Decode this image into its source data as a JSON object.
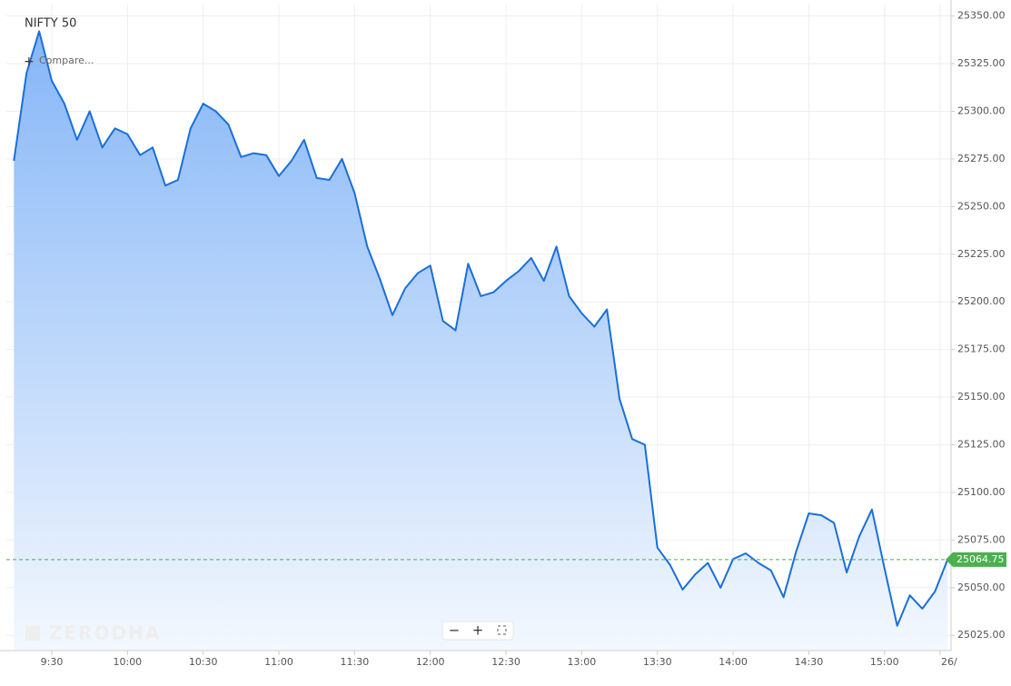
{
  "chart_data": {
    "type": "area",
    "title": "NIFTY 50",
    "compare_label": "Compare...",
    "watermark": "ZERODHA",
    "controls": [
      "−",
      "+"
    ],
    "color": "#1a6fd8",
    "grid": true,
    "x": [
      "9:15",
      "9:20",
      "9:25",
      "9:30",
      "9:35",
      "9:40",
      "9:45",
      "9:50",
      "9:55",
      "10:00",
      "10:05",
      "10:10",
      "10:15",
      "10:20",
      "10:25",
      "10:30",
      "10:35",
      "10:40",
      "10:45",
      "10:50",
      "10:55",
      "11:00",
      "11:05",
      "11:10",
      "11:15",
      "11:20",
      "11:25",
      "11:30",
      "11:35",
      "11:40",
      "11:45",
      "11:50",
      "11:55",
      "12:00",
      "12:05",
      "12:10",
      "12:15",
      "12:20",
      "12:25",
      "12:30",
      "12:35",
      "12:40",
      "12:45",
      "12:50",
      "12:55",
      "13:00",
      "13:05",
      "13:10",
      "13:15",
      "13:20",
      "13:25",
      "13:30",
      "13:35",
      "13:40",
      "13:45",
      "13:50",
      "13:55",
      "14:00",
      "14:05",
      "14:10",
      "14:15",
      "14:20",
      "14:25",
      "14:30",
      "14:35",
      "14:40",
      "14:45",
      "14:50",
      "14:55",
      "15:00",
      "15:05",
      "15:10",
      "15:15",
      "15:20",
      "15:25"
    ],
    "values": [
      25274,
      25320,
      25342,
      25316,
      25304,
      25285,
      25300,
      25281,
      25291,
      25288,
      25277,
      25281,
      25261,
      25264,
      25291,
      25304,
      25300,
      25293,
      25276,
      25278,
      25277,
      25266,
      25274,
      25285,
      25265,
      25264,
      25275,
      25257,
      25229,
      25212,
      25193,
      25207,
      25215,
      25219,
      25190,
      25185,
      25220,
      25203,
      25205,
      25211,
      25216,
      25223,
      25211,
      25229,
      25203,
      25194,
      25187,
      25196,
      25149,
      25128,
      25125,
      25071,
      25062,
      25049,
      25057,
      25063,
      25050,
      25065,
      25068,
      25063,
      25059,
      25045,
      25069,
      25089,
      25088,
      25084,
      25058,
      25077,
      25091,
      25060,
      25030,
      25046,
      25039,
      25048,
      25064.75
    ],
    "last_value": 25064.75,
    "xlim": [
      "9:12",
      "15:26"
    ],
    "xticks": [
      "9:30",
      "10:00",
      "10:30",
      "11:00",
      "11:30",
      "12:00",
      "12:30",
      "13:00",
      "13:30",
      "14:00",
      "14:30",
      "15:00",
      {
        "value": "15:22",
        "label": "26/"
      }
    ],
    "ylim": [
      25017,
      25356
    ],
    "yticks": [
      {
        "value": 25025,
        "label": "25025.00"
      },
      {
        "value": 25050,
        "label": "25050.00"
      },
      {
        "value": 25075,
        "label": "25075.00"
      },
      {
        "value": 25100,
        "label": "25100.00"
      },
      {
        "value": 25125,
        "label": "25125.00"
      },
      {
        "value": 25150,
        "label": "25150.00"
      },
      {
        "value": 25175,
        "label": "25175.00"
      },
      {
        "value": 25200,
        "label": "25200.00"
      },
      {
        "value": 25225,
        "label": "25225.00"
      },
      {
        "value": 25250,
        "label": "25250.00"
      },
      {
        "value": 25275,
        "label": "25275.00"
      },
      {
        "value": 25300,
        "label": "25300.00"
      },
      {
        "value": 25325,
        "label": "25325.00"
      },
      {
        "value": 25350,
        "label": "25350.00"
      }
    ]
  }
}
